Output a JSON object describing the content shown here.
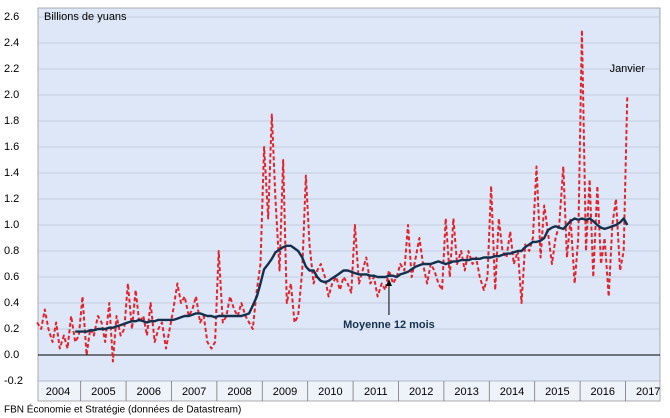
{
  "chart_data": {
    "type": "line",
    "y_axis_label": "Billions de yuans",
    "source": "FBN Économie et Stratégie (données de Datastream)",
    "annotations": [
      {
        "text": "Janvier",
        "x": 2017.04,
        "y": 2.0
      },
      {
        "text": "Moyenne 12 mois",
        "x": 2011.79,
        "y": 0.6
      }
    ],
    "xlim": [
      2004.06,
      2017.76
    ],
    "ylim": [
      -0.2,
      2.6
    ],
    "yticks": [
      {
        "value": -0.2,
        "label": "-0.2"
      },
      {
        "value": 0,
        "label": "0.0"
      },
      0.2,
      0.4,
      0.6,
      0.8,
      {
        "value": 1,
        "label": "1.0"
      },
      1.2,
      1.4,
      1.6,
      1.8,
      {
        "value": 2,
        "label": "2.0"
      },
      2.2,
      2.4,
      2.6
    ],
    "xticks": [
      {
        "value": 2004.5,
        "label": "2004"
      },
      {
        "value": 2005.5,
        "label": "2005"
      },
      {
        "value": 2006.5,
        "label": "2006"
      },
      {
        "value": 2007.5,
        "label": "2007"
      },
      {
        "value": 2008.5,
        "label": "2008"
      },
      {
        "value": 2009.5,
        "label": "2009"
      },
      {
        "value": 2010.5,
        "label": "2010"
      },
      {
        "value": 2011.5,
        "label": "2011"
      },
      {
        "value": 2012.5,
        "label": "2012"
      },
      {
        "value": 2013.5,
        "label": "2013"
      },
      {
        "value": 2014.5,
        "label": "2014"
      },
      {
        "value": 2015.5,
        "label": "2015"
      },
      {
        "value": 2016.5,
        "label": "2016"
      },
      {
        "value": 2017.5,
        "label": "2017"
      }
    ],
    "year_boundaries": [
      2005,
      2006,
      2007,
      2008,
      2009,
      2010,
      2011,
      2012,
      2013,
      2014,
      2015,
      2016,
      2017
    ],
    "grid": true,
    "x": [
      2004.04,
      2004.13,
      2004.21,
      2004.29,
      2004.38,
      2004.46,
      2004.54,
      2004.63,
      2004.71,
      2004.79,
      2004.88,
      2004.96,
      2005.04,
      2005.13,
      2005.21,
      2005.29,
      2005.38,
      2005.46,
      2005.54,
      2005.63,
      2005.71,
      2005.79,
      2005.88,
      2005.96,
      2006.04,
      2006.13,
      2006.21,
      2006.29,
      2006.38,
      2006.46,
      2006.54,
      2006.63,
      2006.71,
      2006.79,
      2006.88,
      2006.96,
      2007.04,
      2007.13,
      2007.21,
      2007.29,
      2007.38,
      2007.46,
      2007.54,
      2007.63,
      2007.71,
      2007.79,
      2007.88,
      2007.96,
      2008.04,
      2008.13,
      2008.21,
      2008.29,
      2008.38,
      2008.46,
      2008.54,
      2008.63,
      2008.71,
      2008.79,
      2008.88,
      2008.96,
      2009.04,
      2009.13,
      2009.21,
      2009.29,
      2009.38,
      2009.46,
      2009.54,
      2009.63,
      2009.71,
      2009.79,
      2009.88,
      2009.96,
      2010.04,
      2010.13,
      2010.21,
      2010.29,
      2010.38,
      2010.46,
      2010.54,
      2010.63,
      2010.71,
      2010.79,
      2010.88,
      2010.96,
      2011.04,
      2011.13,
      2011.21,
      2011.29,
      2011.38,
      2011.46,
      2011.54,
      2011.63,
      2011.71,
      2011.79,
      2011.88,
      2011.96,
      2012.04,
      2012.13,
      2012.21,
      2012.29,
      2012.38,
      2012.46,
      2012.54,
      2012.63,
      2012.71,
      2012.79,
      2012.88,
      2012.96,
      2013.04,
      2013.13,
      2013.21,
      2013.29,
      2013.38,
      2013.46,
      2013.54,
      2013.63,
      2013.71,
      2013.79,
      2013.88,
      2013.96,
      2014.04,
      2014.13,
      2014.21,
      2014.29,
      2014.38,
      2014.46,
      2014.54,
      2014.63,
      2014.71,
      2014.79,
      2014.88,
      2014.96,
      2015.04,
      2015.13,
      2015.21,
      2015.29,
      2015.38,
      2015.46,
      2015.54,
      2015.63,
      2015.71,
      2015.79,
      2015.88,
      2015.96,
      2016.04,
      2016.13,
      2016.21,
      2016.29,
      2016.38,
      2016.46,
      2016.54,
      2016.63,
      2016.71,
      2016.79,
      2016.88,
      2016.96,
      2017.04
    ],
    "series": [
      {
        "color": "#e3232c",
        "dashed": true,
        "values": [
          0.25,
          0.2,
          0.35,
          0.2,
          0.1,
          0.25,
          0.05,
          0.15,
          0.05,
          0.3,
          0.1,
          0.15,
          0.45,
          0.0,
          0.2,
          0.15,
          0.3,
          0.25,
          0.1,
          0.4,
          -0.05,
          0.3,
          0.15,
          0.2,
          0.55,
          0.2,
          0.5,
          0.25,
          0.3,
          0.15,
          0.4,
          0.1,
          0.2,
          0.25,
          0.05,
          0.2,
          0.35,
          0.55,
          0.4,
          0.45,
          0.3,
          0.35,
          0.45,
          0.25,
          0.3,
          0.1,
          0.05,
          0.1,
          0.8,
          0.25,
          0.3,
          0.45,
          0.35,
          0.3,
          0.4,
          0.3,
          0.25,
          0.2,
          0.5,
          0.7,
          1.6,
          1.05,
          1.85,
          1.2,
          0.65,
          1.5,
          0.4,
          0.55,
          0.25,
          0.3,
          0.65,
          1.38,
          0.85,
          0.55,
          0.65,
          0.7,
          0.6,
          0.45,
          0.55,
          0.6,
          0.5,
          0.6,
          0.55,
          0.48,
          1.0,
          0.55,
          0.65,
          0.75,
          0.55,
          0.6,
          0.45,
          0.55,
          0.5,
          0.65,
          0.55,
          0.6,
          0.7,
          0.65,
          1.0,
          0.6,
          0.75,
          0.9,
          0.7,
          0.55,
          0.7,
          0.65,
          0.55,
          0.5,
          1.05,
          0.6,
          1.05,
          0.7,
          0.8,
          0.65,
          0.8,
          0.7,
          0.75,
          0.6,
          0.5,
          0.6,
          1.3,
          0.5,
          1.05,
          0.8,
          0.75,
          0.95,
          0.7,
          0.8,
          0.4,
          0.85,
          0.8,
          0.9,
          1.45,
          0.75,
          1.15,
          0.95,
          0.7,
          0.9,
          1.0,
          1.45,
          0.75,
          1.05,
          0.55,
          0.9,
          2.5,
          0.8,
          1.35,
          0.6,
          1.3,
          0.7,
          0.9,
          0.45,
          1.0,
          1.2,
          0.65,
          0.8,
          2.0
        ]
      },
      {
        "color": "#15304d",
        "dashed": false,
        "values": [
          null,
          null,
          null,
          null,
          null,
          null,
          null,
          null,
          null,
          null,
          0.18,
          0.18,
          0.18,
          0.18,
          0.19,
          0.19,
          0.2,
          0.2,
          0.2,
          0.21,
          0.21,
          0.22,
          0.23,
          0.24,
          0.25,
          0.26,
          0.26,
          0.27,
          0.26,
          0.25,
          0.26,
          0.26,
          0.27,
          0.27,
          0.27,
          0.27,
          0.27,
          0.28,
          0.29,
          0.3,
          0.3,
          0.31,
          0.32,
          0.32,
          0.31,
          0.3,
          0.3,
          0.29,
          0.3,
          0.3,
          0.3,
          0.3,
          0.3,
          0.3,
          0.3,
          0.31,
          0.32,
          0.38,
          0.45,
          0.55,
          0.66,
          0.7,
          0.74,
          0.79,
          0.81,
          0.83,
          0.84,
          0.84,
          0.82,
          0.8,
          0.75,
          0.68,
          0.65,
          0.65,
          0.6,
          0.57,
          0.56,
          0.57,
          0.59,
          0.61,
          0.63,
          0.65,
          0.65,
          0.64,
          0.63,
          0.62,
          0.62,
          0.62,
          0.61,
          0.61,
          0.6,
          0.6,
          0.6,
          0.61,
          0.61,
          0.6,
          0.62,
          0.63,
          0.64,
          0.66,
          0.68,
          0.69,
          0.7,
          0.7,
          0.7,
          0.71,
          0.72,
          0.71,
          0.7,
          0.71,
          0.72,
          0.72,
          0.73,
          0.73,
          0.73,
          0.74,
          0.74,
          0.74,
          0.75,
          0.75,
          0.75,
          0.76,
          0.76,
          0.77,
          0.78,
          0.78,
          0.79,
          0.8,
          0.8,
          0.83,
          0.85,
          0.87,
          0.87,
          0.88,
          0.9,
          0.96,
          0.98,
          0.99,
          0.98,
          0.97,
          1.0,
          1.03,
          1.05,
          1.04,
          1.05,
          1.04,
          1.05,
          1.03,
          1.0,
          0.98,
          0.97,
          0.98,
          0.99,
          1.0,
          1.02,
          1.05,
          1.0
        ]
      }
    ]
  }
}
